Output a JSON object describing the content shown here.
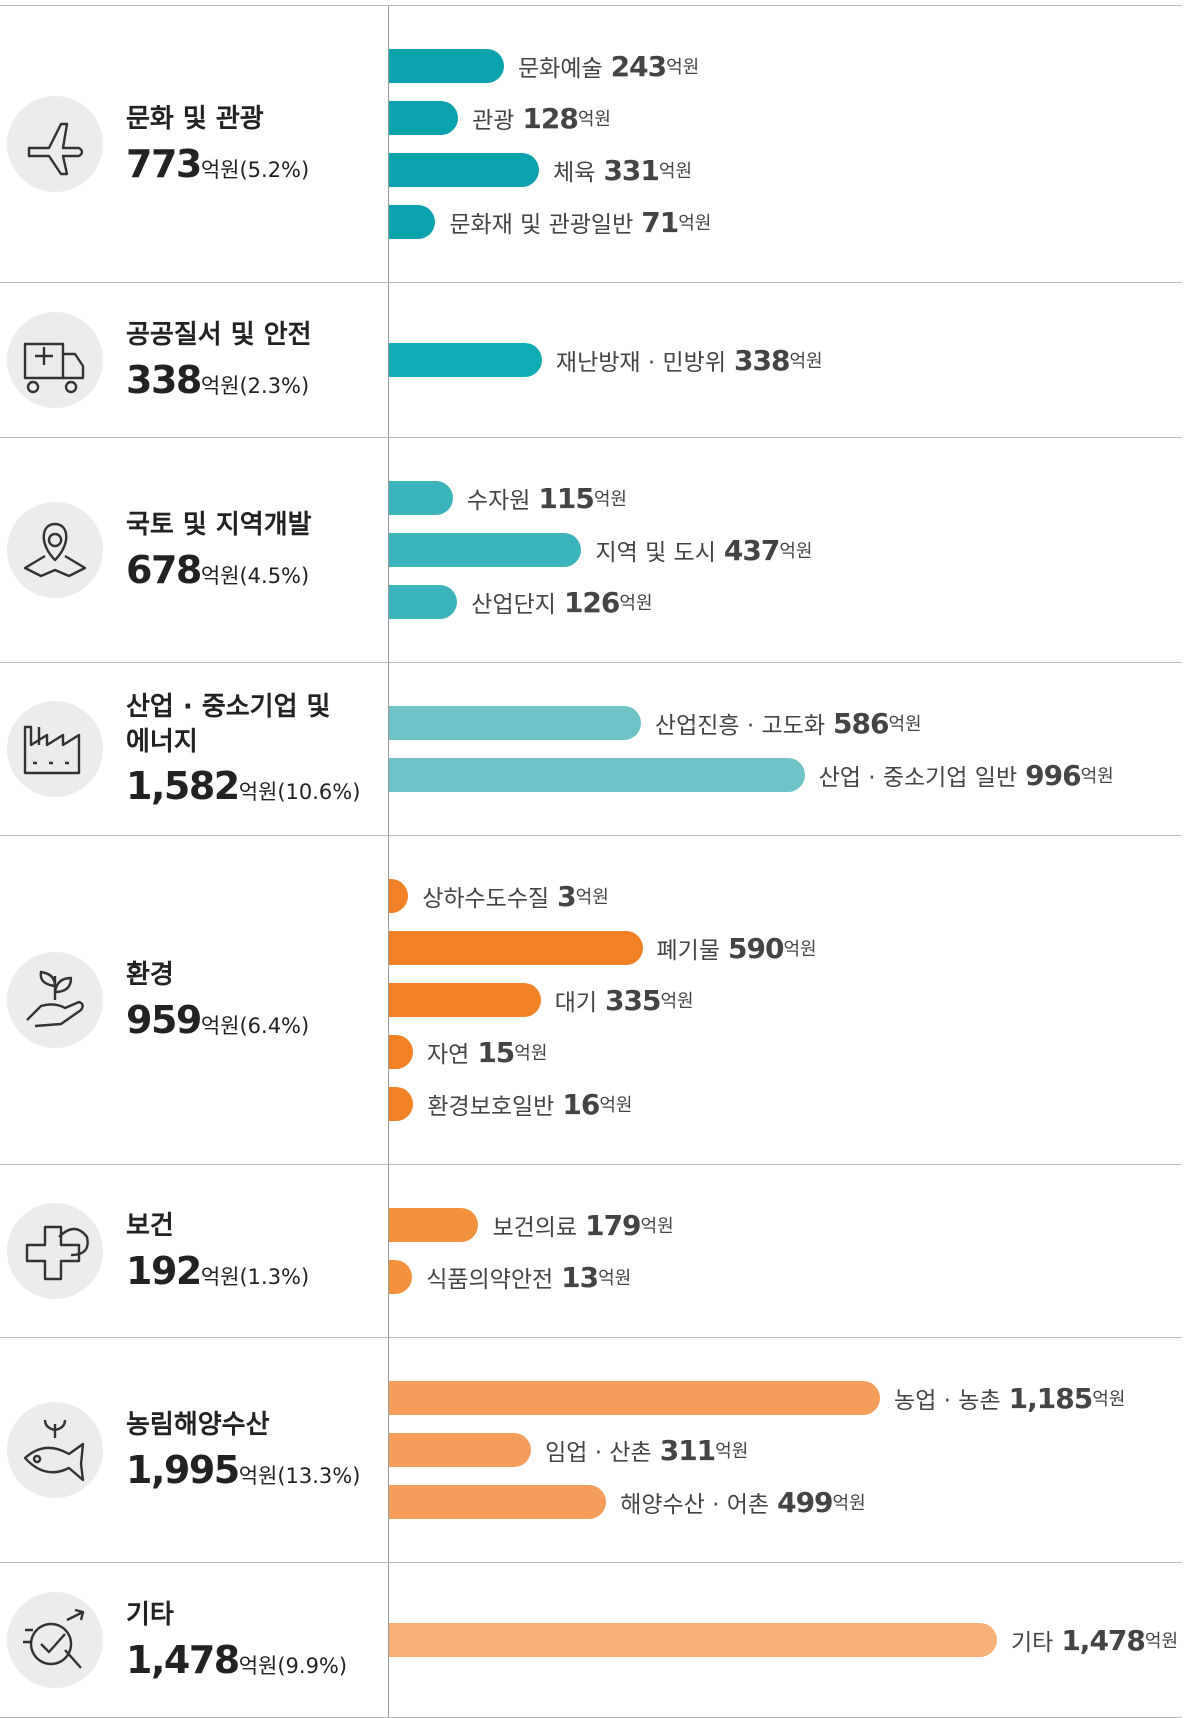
{
  "chart_data": {
    "type": "bar",
    "unit": "억원",
    "groups": [
      {
        "name": "문화 및 관광",
        "total": 773,
        "share": 5.2,
        "share_label": "(5.2%)",
        "color": "#0aa2ac",
        "items": [
          {
            "name": "문화예술",
            "value": 243
          },
          {
            "name": "관광",
            "value": 128
          },
          {
            "name": "체육",
            "value": 331
          },
          {
            "name": "문화재 및 관광일반",
            "value": 71
          }
        ]
      },
      {
        "name": "공공질서 및 안전",
        "total": 338,
        "share": 2.3,
        "share_label": "(2.3%)",
        "color": "#12adb4",
        "items": [
          {
            "name": "재난방재 · 민방위",
            "value": 338
          }
        ]
      },
      {
        "name": "국토 및 지역개발",
        "total": 678,
        "share": 4.5,
        "share_label": "(4.5%)",
        "color": "#3bb5bb",
        "items": [
          {
            "name": "수자원",
            "value": 115
          },
          {
            "name": "지역 및 도시",
            "value": 437
          },
          {
            "name": "산업단지",
            "value": 126
          }
        ]
      },
      {
        "name": "산업 · 중소기업 및 에너지",
        "total": 1582,
        "total_label": "1,582",
        "share": 10.6,
        "share_label": "(10.6%)",
        "color": "#6fc3c6",
        "items": [
          {
            "name": "산업진흥 · 고도화",
            "value": 586
          },
          {
            "name": "산업 · 중소기업 일반",
            "value": 996
          }
        ]
      },
      {
        "name": "환경",
        "total": 959,
        "share": 6.4,
        "share_label": "(6.4%)",
        "color": "#f28126",
        "items": [
          {
            "name": "상하수도수질",
            "value": 3
          },
          {
            "name": "폐기물",
            "value": 590
          },
          {
            "name": "대기",
            "value": 335
          },
          {
            "name": "자연",
            "value": 15
          },
          {
            "name": "환경보호일반",
            "value": 16
          }
        ]
      },
      {
        "name": "보건",
        "total": 192,
        "share": 1.3,
        "share_label": "(1.3%)",
        "color": "#f4913d",
        "items": [
          {
            "name": "보건의료",
            "value": 179
          },
          {
            "name": "식품의약안전",
            "value": 13
          }
        ]
      },
      {
        "name": "농림해양수산",
        "total": 1995,
        "total_label": "1,995",
        "share": 13.3,
        "share_label": "(13.3%)",
        "color": "#f59e5b",
        "items": [
          {
            "name": "농업 · 농촌",
            "value": 1185,
            "value_label": "1,185"
          },
          {
            "name": "임업 · 산촌",
            "value": 311
          },
          {
            "name": "해양수산 · 어촌",
            "value": 499
          }
        ]
      },
      {
        "name": "기타",
        "total": 1478,
        "total_label": "1,478",
        "share": 9.9,
        "share_label": "(9.9%)",
        "color": "#f9b078",
        "items": [
          {
            "name": "기타",
            "value": 1478,
            "value_label": "1,478"
          }
        ]
      }
    ]
  }
}
